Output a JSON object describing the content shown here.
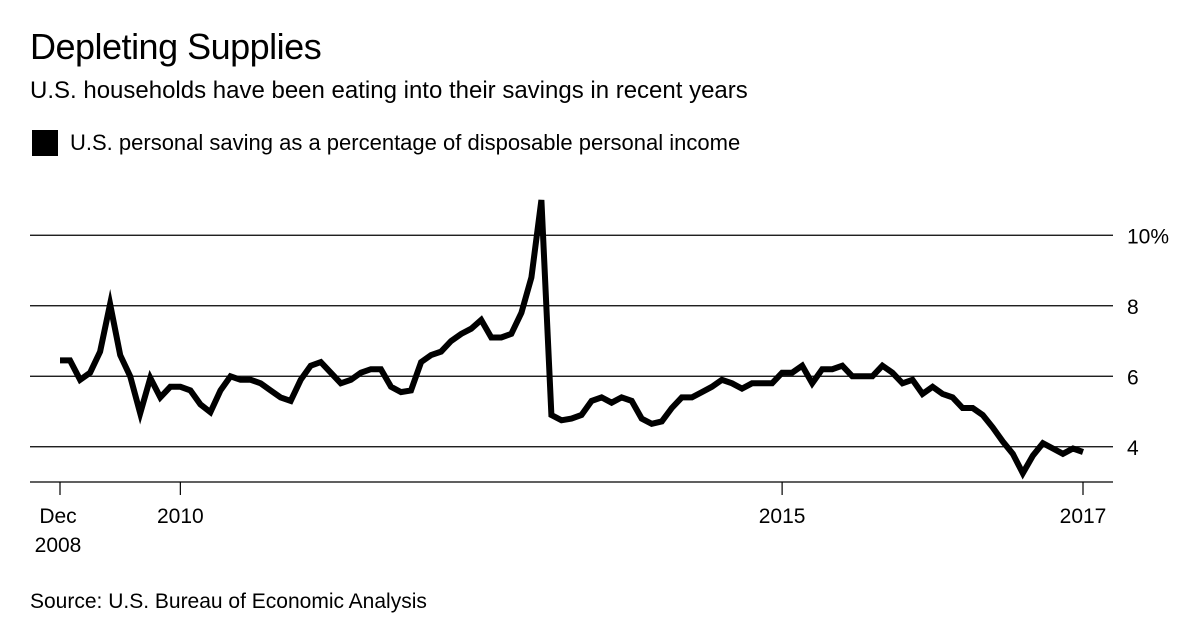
{
  "title": "Depleting Supplies",
  "subtitle": "U.S. households have been eating into their savings in recent years",
  "legend": {
    "label": "U.S. personal saving as a percentage of disposable personal income",
    "color": "#000000"
  },
  "source": "Source: U.S. Bureau of Economic Analysis",
  "chart_data": {
    "type": "line",
    "title": "Depleting Supplies",
    "subtitle": "U.S. households have been eating into their savings in recent years",
    "xlabel": "",
    "ylabel": "",
    "ylim": [
      3,
      11
    ],
    "xlim": [
      0,
      102
    ],
    "y_ticks": [
      {
        "value": 10,
        "label": "10%"
      },
      {
        "value": 8,
        "label": "8"
      },
      {
        "value": 6,
        "label": "6"
      },
      {
        "value": 4,
        "label": "4"
      }
    ],
    "x_ticks": [
      {
        "index": 0,
        "line1": "Dec",
        "line2": "2008",
        "align": "start"
      },
      {
        "index": 12,
        "line1": "2010",
        "line2": "",
        "align": "middle"
      },
      {
        "index": 72,
        "line1": "2015",
        "line2": "",
        "align": "middle"
      },
      {
        "index": 102,
        "line1": "2017",
        "line2": "",
        "align": "middle"
      }
    ],
    "grid": true,
    "series": [
      {
        "name": "U.S. personal saving as a percentage of disposable personal income",
        "color": "#000000",
        "values": [
          6.45,
          6.45,
          5.9,
          6.1,
          6.7,
          8.05,
          6.6,
          6.0,
          4.95,
          5.95,
          5.4,
          5.7,
          5.7,
          5.6,
          5.2,
          4.98,
          5.6,
          6.0,
          5.9,
          5.9,
          5.8,
          5.6,
          5.4,
          5.3,
          5.9,
          6.3,
          6.4,
          6.1,
          5.8,
          5.9,
          6.1,
          6.2,
          6.2,
          5.7,
          5.55,
          5.6,
          6.4,
          6.6,
          6.7,
          7.0,
          7.2,
          7.35,
          7.6,
          7.1,
          7.1,
          7.2,
          7.8,
          8.8,
          11.0,
          4.9,
          4.75,
          4.8,
          4.9,
          5.3,
          5.4,
          5.25,
          5.4,
          5.3,
          4.8,
          4.65,
          4.72,
          5.1,
          5.4,
          5.4,
          5.55,
          5.7,
          5.9,
          5.8,
          5.65,
          5.8,
          5.8,
          5.8,
          6.1,
          6.1,
          6.3,
          5.8,
          6.2,
          6.2,
          6.3,
          6.0,
          6.0,
          6.0,
          6.3,
          6.1,
          5.8,
          5.9,
          5.5,
          5.7,
          5.5,
          5.4,
          5.1,
          5.1,
          4.9,
          4.55,
          4.15,
          3.8,
          3.25,
          3.75,
          4.1,
          3.95,
          3.8,
          3.95,
          3.85
        ]
      }
    ]
  }
}
